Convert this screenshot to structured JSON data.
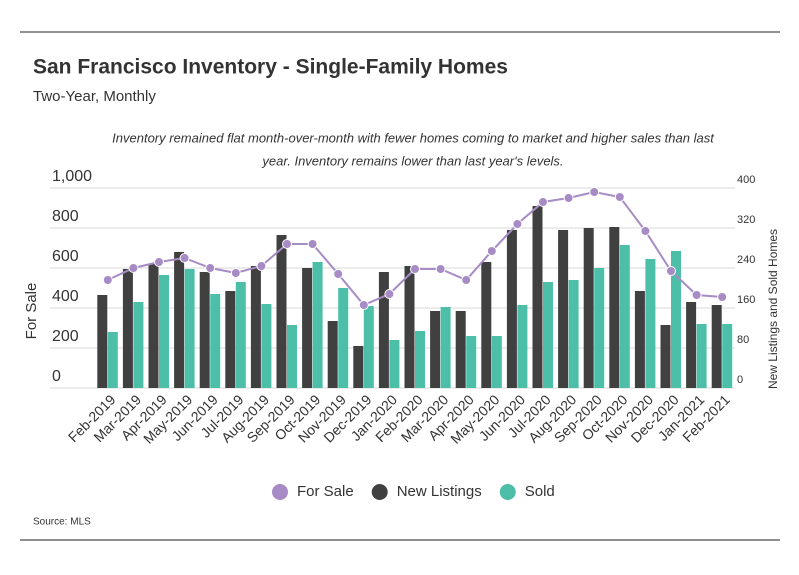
{
  "chart_data": {
    "type": "bar-line",
    "title": "San Francisco Inventory - Single-Family Homes",
    "subtitle": "Two-Year, Monthly",
    "annotation": [
      "Inventory remained flat month-over-month with fewer homes coming to market and higher sales than last",
      "year. Inventory remains lower than last year's levels."
    ],
    "source": "Source:  MLS",
    "y_label": "For Sale",
    "y2_label": "New Listings and Sold Homes",
    "categories": [
      "Feb-2019",
      "Mar-2019",
      "Apr-2019",
      "May-2019",
      "Jun-2019",
      "Jul-2019",
      "Aug-2019",
      "Sep-2019",
      "Oct-2019",
      "Nov-2019",
      "Dec-2019",
      "Jan-2020",
      "Feb-2020",
      "Mar-2020",
      "Apr-2020",
      "May-2020",
      "Jun-2020",
      "Jul-2020",
      "Aug-2020",
      "Sep-2020",
      "Oct-2020",
      "Nov-2020",
      "Dec-2020",
      "Jan-2021",
      "Feb-2021"
    ],
    "series": [
      {
        "name": "For Sale",
        "type": "line",
        "axis": "y",
        "color": "#a68bc4",
        "values": [
          540,
          600,
          630,
          650,
          600,
          575,
          610,
          720,
          720,
          570,
          415,
          470,
          595,
          595,
          540,
          685,
          820,
          930,
          950,
          980,
          955,
          785,
          585,
          465,
          455
        ]
      },
      {
        "name": "New Listings",
        "type": "bar",
        "axis": "y2",
        "color": "#404040",
        "values": [
          186,
          238,
          248,
          272,
          232,
          194,
          244,
          306,
          240,
          134,
          84,
          232,
          244,
          154,
          154,
          252,
          316,
          364,
          316,
          320,
          322,
          194,
          126,
          172,
          166
        ]
      },
      {
        "name": "Sold",
        "type": "bar",
        "axis": "y2",
        "color": "#4dbfa8",
        "values": [
          112,
          172,
          226,
          238,
          188,
          212,
          168,
          126,
          252,
          200,
          164,
          96,
          114,
          162,
          104,
          104,
          166,
          212,
          216,
          240,
          286,
          258,
          274,
          128,
          128
        ]
      }
    ],
    "ylim": [
      0,
      1000
    ],
    "yticks": [
      0,
      200,
      400,
      600,
      800,
      {
        "value": 1000,
        "label": "1,000"
      }
    ],
    "y2lim": [
      0,
      400
    ],
    "y2ticks": [
      0,
      80,
      160,
      240,
      320,
      400
    ],
    "grid": true
  }
}
